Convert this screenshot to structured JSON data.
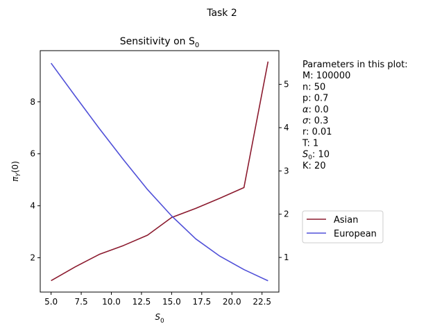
{
  "figure": {
    "suptitle": "Task 2",
    "title": "Sensitivity on S",
    "title_sub": "0"
  },
  "parameters": {
    "heading": "Parameters in this plot:",
    "items": [
      {
        "label": "M",
        "value": ": 100000"
      },
      {
        "label": "n",
        "value": ": 50"
      },
      {
        "label": "p",
        "value": ": 0.7"
      },
      {
        "label": "α",
        "value": ": 0.0",
        "italic": true
      },
      {
        "label": "σ",
        "value": ": 0.3",
        "italic": true
      },
      {
        "label": "r",
        "value": ": 0.01"
      },
      {
        "label": "T",
        "value": ": 1"
      },
      {
        "label": "S",
        "sub": "0",
        "value": ": 10",
        "italic": true
      },
      {
        "label": "K",
        "value": ": 20"
      }
    ]
  },
  "colors": {
    "asian": "#8b1a2e",
    "european": "#5050d8"
  },
  "chart_data": {
    "type": "line",
    "title": "Sensitivity on S_0",
    "xlabel": "S_0",
    "ylabel_left": "π_Y(0)",
    "x": [
      5,
      7,
      9,
      11,
      13,
      15,
      17,
      19,
      21,
      23
    ],
    "xlim": [
      4.1,
      23.9
    ],
    "xticks": [
      5.0,
      7.5,
      10.0,
      12.5,
      15.0,
      17.5,
      20.0,
      22.5
    ],
    "xtick_labels": [
      "5.0",
      "7.5",
      "10.0",
      "12.5",
      "15.0",
      "17.5",
      "20.0",
      "22.5"
    ],
    "left_axis": {
      "ylim": [
        0.68,
        9.97
      ],
      "yticks": [
        2,
        4,
        6,
        8
      ],
      "ytick_labels": [
        "2",
        "4",
        "6",
        "8"
      ]
    },
    "right_axis": {
      "ylim": [
        0.2,
        5.78
      ],
      "yticks": [
        1,
        2,
        3,
        4,
        5
      ],
      "ytick_labels": [
        "1",
        "2",
        "3",
        "4",
        "5"
      ]
    },
    "series": [
      {
        "name": "Asian",
        "axis": "left",
        "color": "#8b1a2e",
        "values": [
          1.12,
          1.65,
          2.13,
          2.47,
          2.87,
          3.55,
          3.9,
          4.29,
          4.7,
          9.55
        ]
      },
      {
        "name": "European",
        "axis": "right",
        "color": "#5050d8",
        "values": [
          5.49,
          4.73,
          3.98,
          3.26,
          2.57,
          1.96,
          1.43,
          1.03,
          0.72,
          0.46
        ]
      }
    ],
    "legend": {
      "placement": "right-outside",
      "entries": [
        "Asian",
        "European"
      ]
    },
    "grid": false
  }
}
